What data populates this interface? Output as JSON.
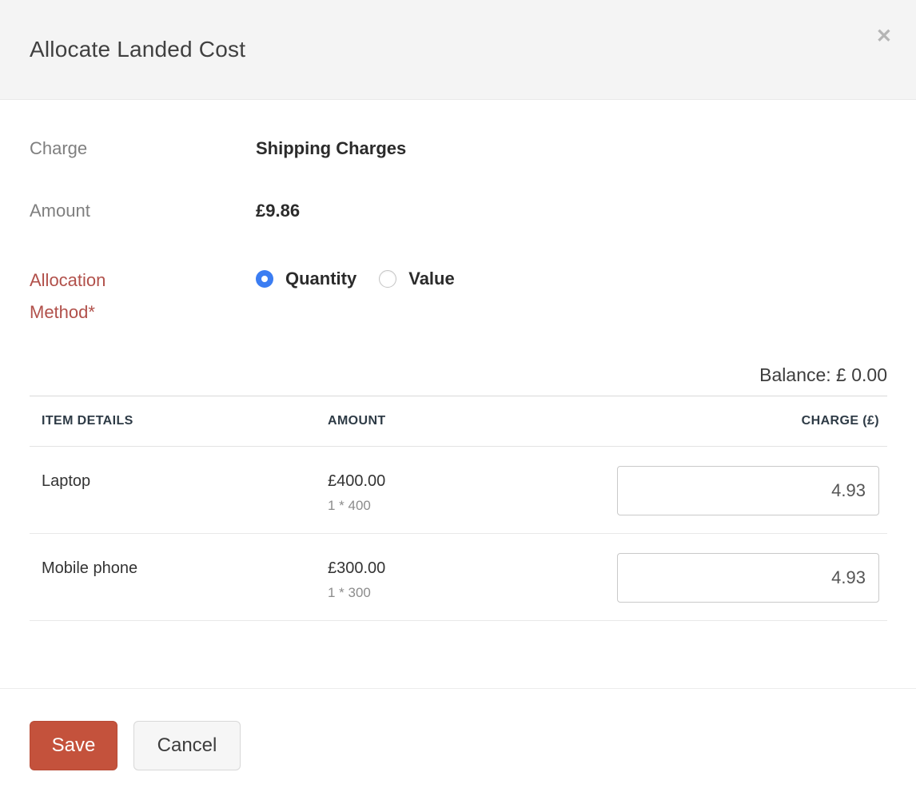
{
  "modal": {
    "title": "Allocate Landed Cost",
    "close_glyph": "✕"
  },
  "fields": {
    "charge": {
      "label": "Charge",
      "value": "Shipping Charges"
    },
    "amount": {
      "label": "Amount",
      "value": "£9.86"
    },
    "allocation": {
      "label": "Allocation Method*",
      "options": [
        {
          "label": "Quantity",
          "selected": true
        },
        {
          "label": "Value",
          "selected": false
        }
      ]
    }
  },
  "balance": {
    "text": "Balance: £ 0.00"
  },
  "table": {
    "headers": [
      "ITEM DETAILS",
      "AMOUNT",
      "CHARGE (£)"
    ],
    "rows": [
      {
        "item": "Laptop",
        "amount": "£400.00",
        "calc": "1 * 400",
        "charge": "4.93"
      },
      {
        "item": "Mobile phone",
        "amount": "£300.00",
        "calc": "1 * 300",
        "charge": "4.93"
      }
    ]
  },
  "footer": {
    "save_label": "Save",
    "cancel_label": "Cancel"
  },
  "colors": {
    "accent_red": "#c4523c",
    "required_label_red": "#b1504a",
    "radio_blue": "#3b7df2",
    "header_bg": "#f4f4f4"
  }
}
